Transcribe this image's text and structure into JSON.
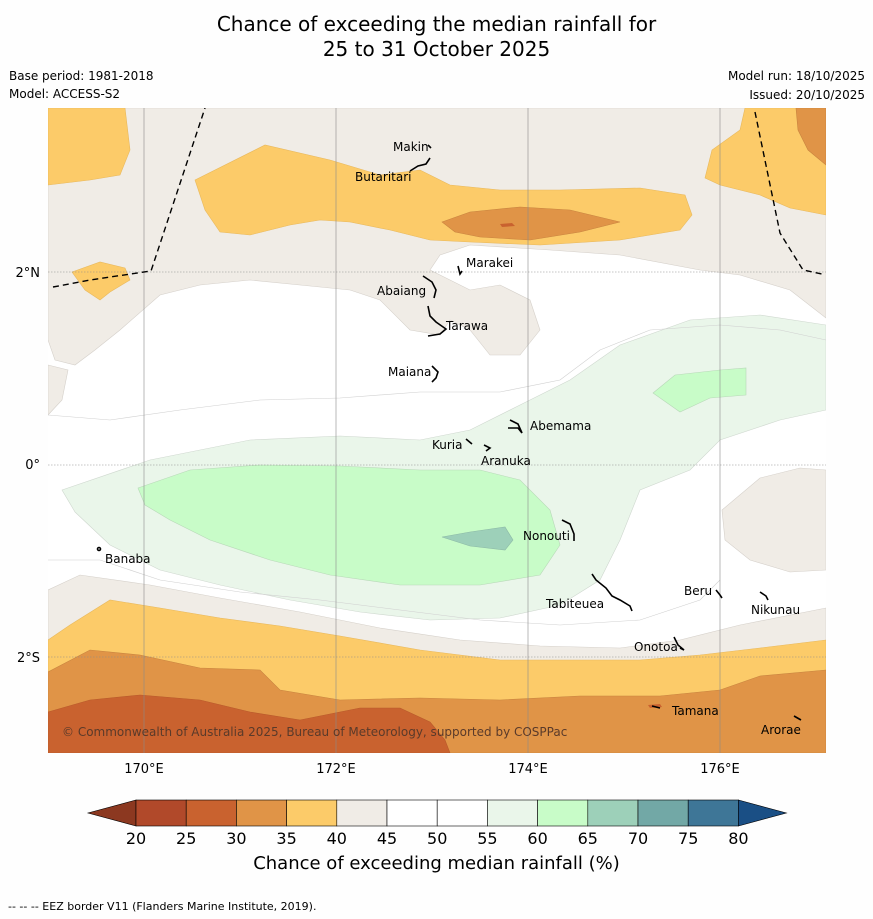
{
  "title": {
    "line1": "Chance of exceeding the median rainfall for",
    "line2": "25 to 31 October 2025"
  },
  "meta": {
    "base_period": "Base period: 1981-2018",
    "model": "Model: ACCESS-S2",
    "model_run": "Model run: 18/10/2025",
    "issued": "Issued: 20/10/2025"
  },
  "axes": {
    "x_ticks": [
      "170°E",
      "172°E",
      "174°E",
      "176°E"
    ],
    "y_ticks": [
      "2°N",
      "0°",
      "2°S"
    ]
  },
  "places": [
    "Makin",
    "Butaritari",
    "Marakei",
    "Abaiang",
    "Tarawa",
    "Maiana",
    "Abemama",
    "Kuria",
    "Aranuka",
    "Nonouti",
    "Banaba",
    "Tabiteuea",
    "Beru",
    "Nikunau",
    "Onotoa",
    "Tamana",
    "Arorae"
  ],
  "copyright": "© Commonwealth of Australia 2025, Bureau of Meteorology, supported by COSPPac",
  "colorbar": {
    "ticks": [
      "20",
      "25",
      "30",
      "35",
      "40",
      "45",
      "50",
      "55",
      "60",
      "65",
      "70",
      "75",
      "80"
    ],
    "colors": [
      "#b1492a",
      "#c9622f",
      "#e09447",
      "#fccb69",
      "#f0ece6",
      "#ffffff",
      "#ffffff",
      "#eaf6ea",
      "#c8fcc8",
      "#9dd0b9",
      "#72a8a6",
      "#3e7697"
    ],
    "under_color": "#8c3820",
    "over_color": "#1a4f85",
    "label": "Chance of exceeding median rainfall (%)"
  },
  "footnote": "--  --  -- EEZ border V11 (Flanders Marine Institute, 2019)."
}
